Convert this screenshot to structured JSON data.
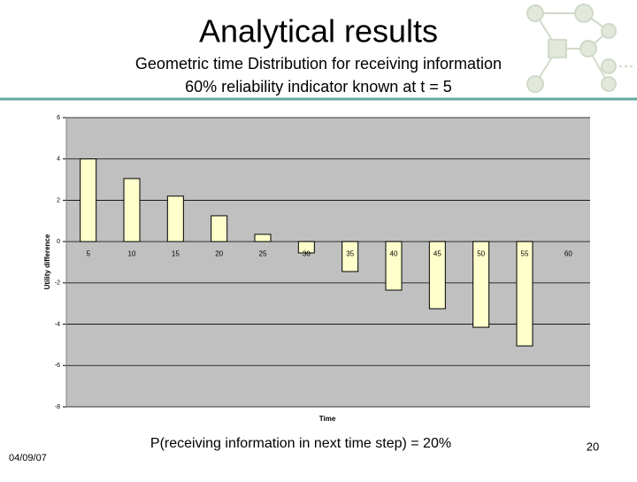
{
  "slide": {
    "title": "Analytical results",
    "subtitle": [
      "Geometric time Distribution for receiving information",
      "60% reliability indicator known at t = 5"
    ],
    "footer": "P(receiving information in next time step) = 20%",
    "date": "04/09/07",
    "page_number": "20"
  },
  "chart_data": {
    "type": "bar",
    "x_label": "Time",
    "y_label": "Utility difference",
    "categories": [
      "5",
      "10",
      "15",
      "20",
      "25",
      "30",
      "35",
      "40",
      "45",
      "50",
      "55",
      "60"
    ],
    "values": [
      4,
      3.05,
      2.2,
      1.25,
      0.35,
      -0.55,
      -1.45,
      -2.35,
      -3.25,
      -4.15,
      -5.05,
      0
    ],
    "color": "#ffffcc",
    "ylim": [
      -8,
      6
    ],
    "yticks": [
      -8,
      -6,
      -4,
      -2,
      0,
      2,
      4,
      6
    ],
    "grid": true
  }
}
